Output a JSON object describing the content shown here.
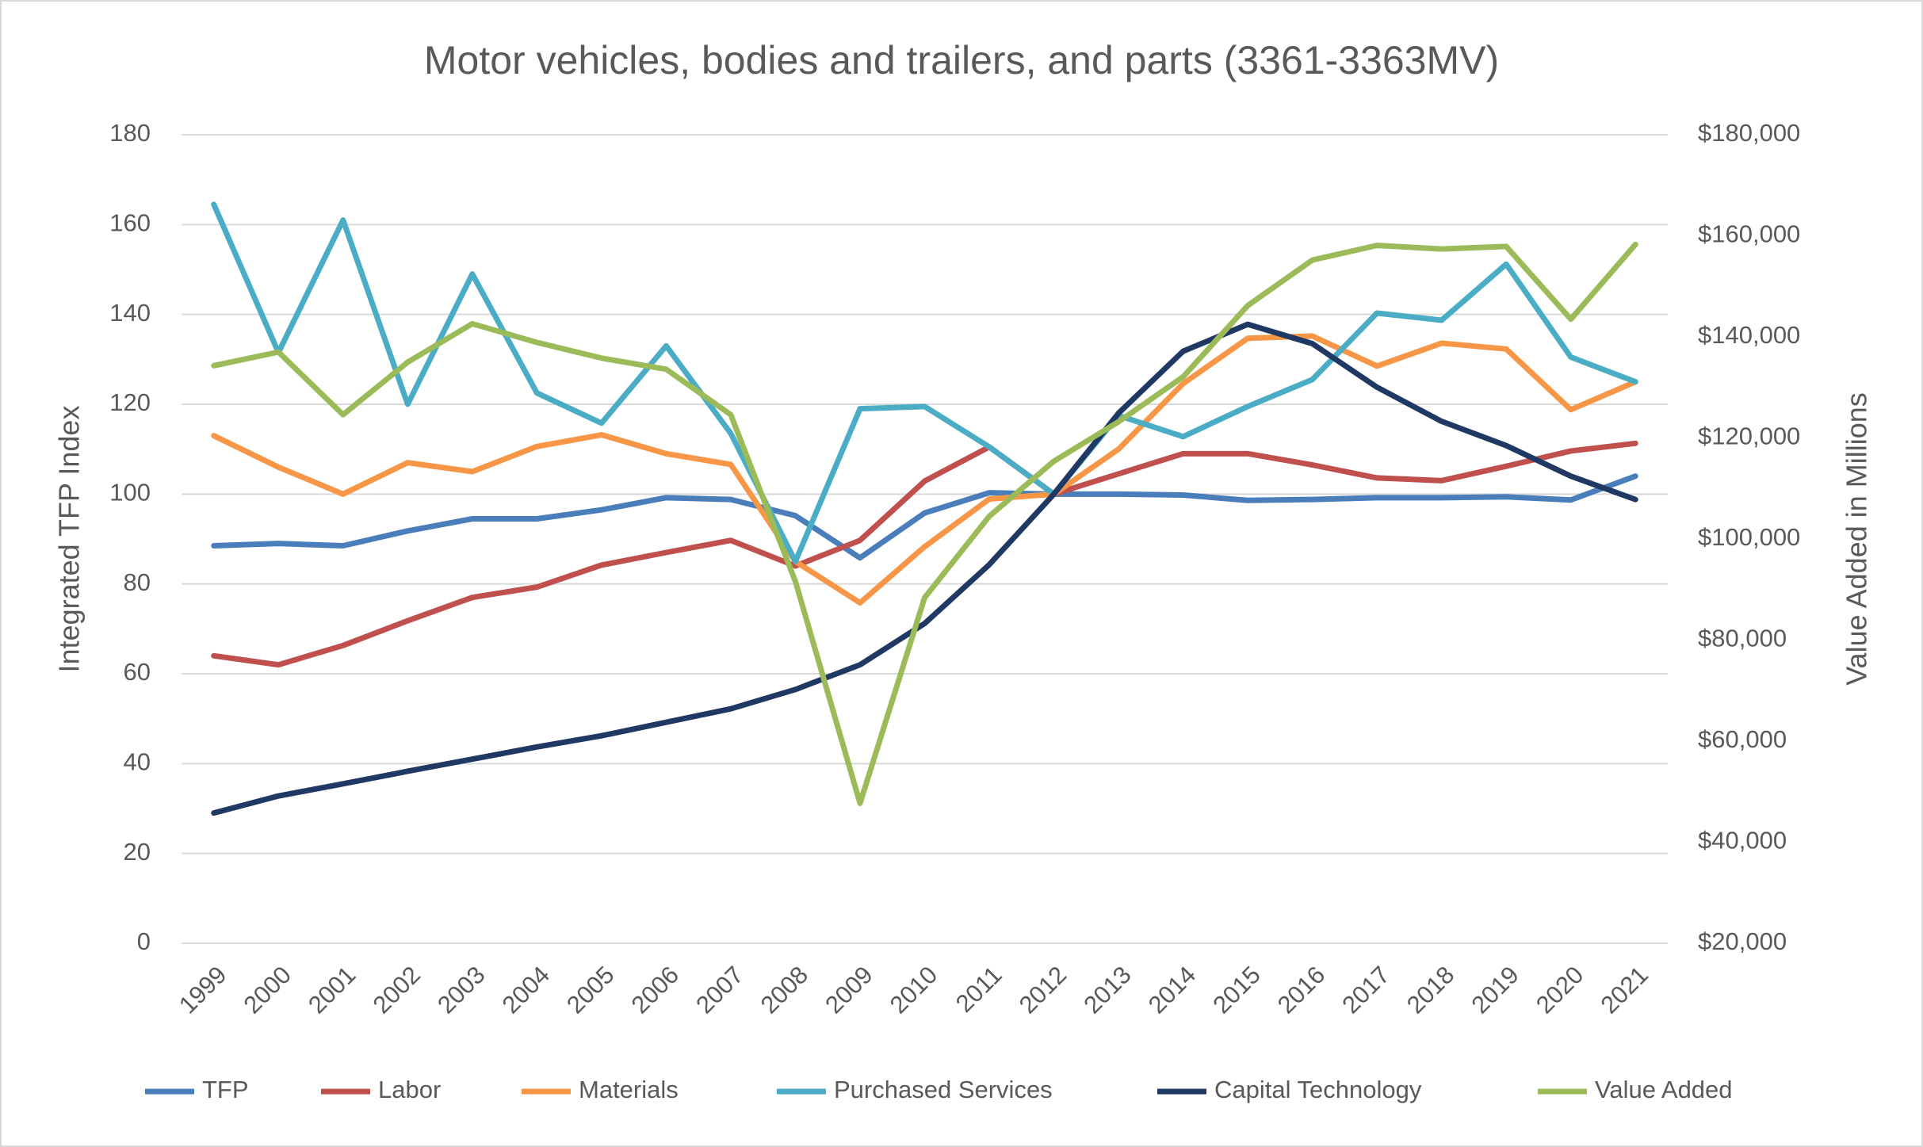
{
  "chart_data": {
    "type": "line",
    "title": "Motor vehicles, bodies and trailers, and parts (3361-3363MV)",
    "y_label": "Integrated TFP Index",
    "y2_label": "Value Added in Millions",
    "categories": [
      "1999",
      "2000",
      "2001",
      "2002",
      "2003",
      "2004",
      "2005",
      "2006",
      "2007",
      "2008",
      "2009",
      "2010",
      "2011",
      "2012",
      "2013",
      "2014",
      "2015",
      "2016",
      "2017",
      "2018",
      "2019",
      "2020",
      "2021"
    ],
    "ylim": [
      0,
      180
    ],
    "yticks": [
      0,
      20,
      40,
      60,
      80,
      100,
      120,
      140,
      160,
      180
    ],
    "y2lim": [
      20000,
      180000
    ],
    "y2ticks": [
      {
        "value": 20000,
        "label": "$20,000"
      },
      {
        "value": 40000,
        "label": "$40,000"
      },
      {
        "value": 60000,
        "label": "$60,000"
      },
      {
        "value": 80000,
        "label": "$80,000"
      },
      {
        "value": 100000,
        "label": "$100,000"
      },
      {
        "value": 120000,
        "label": "$120,000"
      },
      {
        "value": 140000,
        "label": "$140,000"
      },
      {
        "value": 160000,
        "label": "$160,000"
      },
      {
        "value": 180000,
        "label": "$180,000"
      }
    ],
    "grid": true,
    "legend": "bottom",
    "series": [
      {
        "name": "TFP",
        "color": "#4a7ebb",
        "values": [
          88.5,
          89,
          88.5,
          91.8,
          94.5,
          94.5,
          96.5,
          99.2,
          98.8,
          95.2,
          85.8,
          95.8,
          100.3,
          100,
          100,
          99.8,
          98.6,
          98.8,
          99.2,
          99.2,
          99.4,
          98.7,
          104
        ]
      },
      {
        "name": "Labor",
        "color": "#c0504d",
        "values": [
          64,
          62,
          66.3,
          71.8,
          77,
          79.3,
          84.2,
          87,
          89.7,
          84,
          89.7,
          102.9,
          110.5,
          100,
          104.5,
          109,
          109,
          106.5,
          103.6,
          103,
          106.2,
          109.6,
          111.3
        ]
      },
      {
        "name": "Materials",
        "color": "#f79646",
        "values": [
          113,
          106,
          100,
          107,
          105,
          110.6,
          113.2,
          109,
          106.6,
          85,
          75.8,
          88.3,
          98.9,
          100,
          110,
          124.6,
          134.7,
          135.2,
          128.5,
          133.6,
          132.3,
          118.8,
          125
        ]
      },
      {
        "name": "Purchased Services",
        "color": "#4bacc6",
        "values": [
          164.5,
          131.5,
          161,
          120,
          149,
          122.5,
          115.8,
          133,
          113.5,
          85,
          119,
          119.5,
          110.5,
          100,
          117.5,
          112.8,
          119.5,
          125.5,
          140.3,
          138.7,
          151.2,
          130.5,
          125
        ]
      },
      {
        "name": "Capital Technology",
        "color": "#1f3864",
        "values": [
          29,
          32.8,
          35.5,
          38.3,
          41,
          43.7,
          46.2,
          49.2,
          52.2,
          56.5,
          62,
          71.2,
          84.3,
          100,
          118,
          131.8,
          137.8,
          133.5,
          123.8,
          116.2,
          110.8,
          104,
          98.8
        ]
      },
      {
        "name": "Value Added",
        "color": "#9bbb59",
        "axis": "y2",
        "values": [
          134300,
          137000,
          124600,
          135000,
          142600,
          138900,
          135800,
          133600,
          124600,
          91600,
          47700,
          88400,
          104500,
          115400,
          123200,
          132100,
          146200,
          155200,
          158100,
          157400,
          157900,
          143500,
          158300
        ]
      }
    ]
  }
}
